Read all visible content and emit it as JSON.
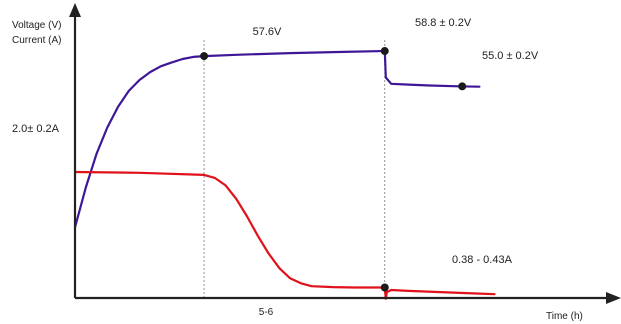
{
  "chart_data": {
    "type": "line",
    "ylabel_lines": [
      "Voltage (V)",
      "Current (A)"
    ],
    "xlabel": "Time (h)",
    "x_ticks": [
      "5-6"
    ],
    "series": [
      {
        "color": "#3d1797",
        "points": [
          [
            0.0,
            16.8
          ],
          [
            0.05,
            26.3
          ],
          [
            0.1,
            34.3
          ],
          [
            0.15,
            40.6
          ],
          [
            0.2,
            45.5
          ],
          [
            0.25,
            49.3
          ],
          [
            0.3,
            51.9
          ],
          [
            0.35,
            53.8
          ],
          [
            0.4,
            55.2
          ],
          [
            0.45,
            56.1
          ],
          [
            0.5,
            56.9
          ],
          [
            0.55,
            57.4
          ],
          [
            0.6,
            57.6
          ],
          [
            0.75,
            57.9
          ],
          [
            1.0,
            58.3
          ],
          [
            1.25,
            58.6
          ],
          [
            1.44,
            58.8
          ],
          [
            1.445,
            52.5
          ],
          [
            1.47,
            51.0
          ],
          [
            1.55,
            50.8
          ],
          [
            1.65,
            50.6
          ],
          [
            1.78,
            50.4
          ],
          [
            1.88,
            50.3
          ]
        ]
      },
      {
        "color": "#e0111a",
        "points": [
          [
            0.0,
            30.0
          ],
          [
            0.3,
            29.8
          ],
          [
            0.6,
            29.3
          ],
          [
            0.65,
            28.6
          ],
          [
            0.7,
            26.8
          ],
          [
            0.75,
            23.6
          ],
          [
            0.8,
            19.4
          ],
          [
            0.85,
            14.8
          ],
          [
            0.9,
            10.6
          ],
          [
            0.95,
            7.1
          ],
          [
            1.0,
            4.7
          ],
          [
            1.05,
            3.5
          ],
          [
            1.1,
            2.8
          ],
          [
            1.2,
            2.6
          ],
          [
            1.3,
            2.5
          ],
          [
            1.44,
            2.5
          ],
          [
            1.445,
            -0.2
          ],
          [
            1.45,
            1.4
          ],
          [
            1.47,
            1.9
          ],
          [
            1.55,
            1.7
          ],
          [
            1.7,
            1.4
          ],
          [
            1.85,
            1.1
          ],
          [
            1.95,
            0.9
          ]
        ]
      }
    ],
    "markers": [
      {
        "series": 0,
        "x": 0.6,
        "y": 57.6
      },
      {
        "series": 0,
        "x": 1.44,
        "y": 58.8
      },
      {
        "series": 0,
        "x": 1.8,
        "y": 50.4
      },
      {
        "series": 1,
        "x": 1.44,
        "y": 2.5
      }
    ],
    "annotations": [
      "57.6V",
      "58.8 ± 0.2V",
      "55.0 ± 0.2V",
      "2.0± 0.2A",
      "0.38 - 0.43A"
    ],
    "vlines_x": [
      0.6,
      1.44
    ],
    "xlim": [
      0,
      2.15
    ],
    "ylim": [
      0,
      70
    ]
  }
}
